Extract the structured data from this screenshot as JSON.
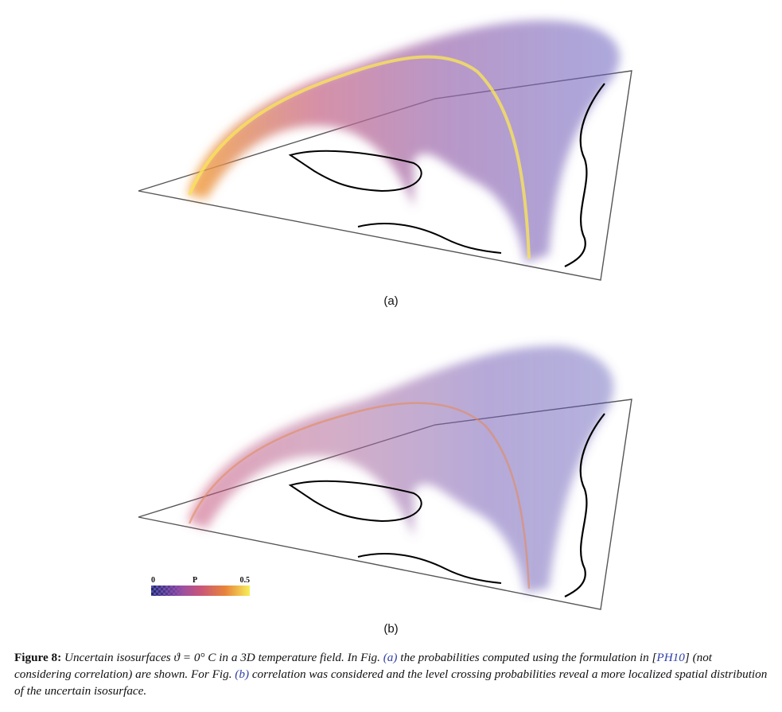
{
  "panels": [
    {
      "label": "(a)",
      "intensity": "high"
    },
    {
      "label": "(b)",
      "intensity": "low"
    }
  ],
  "colorbar": {
    "min": "0",
    "variable": "P",
    "max": "0.5"
  },
  "caption": {
    "label": "Figure 8:",
    "part1": "Uncertain isosurfaces ϑ = 0° C in a 3D temperature field. In Fig.",
    "ref_a": "(a)",
    "part2": "the probabilities computed using the formulation in [",
    "ref_cite": "PH10",
    "part3": "] (not considering correlation) are shown. For Fig.",
    "ref_b": "(b)",
    "part4": "correlation was considered and the level crossing probabilities reveal a more localized spatial distribution of the uncertain isosurface."
  },
  "colors": {
    "purple": "#5a55b5",
    "orange": "#e8833c",
    "yellow": "#f7ef5a",
    "coast": "#000000"
  }
}
